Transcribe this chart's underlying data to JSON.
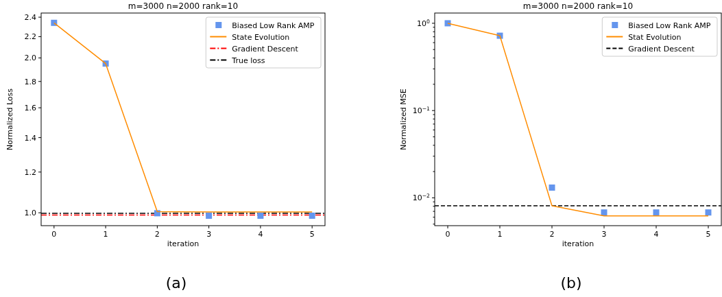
{
  "chart_data": [
    {
      "type": "scatter",
      "title": "m=3000 n=2000 rank=10",
      "xlabel": "iteration",
      "ylabel": "Normalized Loss",
      "x": [
        0,
        1,
        2,
        3,
        4,
        5
      ],
      "log": "y",
      "xlim": [
        -0.25,
        5.25
      ],
      "xticks": [
        0,
        1,
        2,
        3,
        4,
        5
      ],
      "ylim": [
        0.944,
        2.445
      ],
      "yticks": [
        {
          "value": 1,
          "label": "1.0"
        },
        1.2,
        1.4,
        1.6,
        1.8,
        {
          "value": 2,
          "label": "2.0"
        },
        2.2,
        2.4
      ],
      "legend": "top right",
      "grid": false,
      "series": [
        {
          "name": "Biased Low Rank AMP",
          "marker": "square",
          "color": "#6495ed",
          "values": [
            2.34,
            1.95,
            0.998,
            0.987,
            0.987,
            0.987
          ]
        },
        {
          "name": "State Evolution",
          "type": "line",
          "line_style": "solid",
          "color": "#ff8c00",
          "values": [
            2.34,
            1.95,
            1.005,
            1.004,
            1.004,
            1.004
          ]
        }
      ],
      "ref_lines": [
        {
          "axis": "y",
          "value": 0.99,
          "label": "Gradient Descent",
          "color": "#ff0000",
          "line_style": "dashdot"
        },
        {
          "axis": "y",
          "value": 0.998,
          "label": "True loss",
          "color": "#000000",
          "line_style": "dashdot"
        }
      ],
      "annotations": [
        "(a)"
      ]
    },
    {
      "type": "scatter",
      "title": "m=3000 n=2000 rank=10",
      "xlabel": "iteration",
      "ylabel": "Normalized MSE",
      "x": [
        0,
        1,
        2,
        3,
        4,
        5
      ],
      "log": "y",
      "xlim": [
        -0.25,
        5.25
      ],
      "xticks": [
        0,
        1,
        2,
        3,
        4,
        5
      ],
      "ylim": [
        0.0048,
        1.31
      ],
      "legend": "top right",
      "grid": false,
      "yticks": [
        {
          "value": 1,
          "label": "10$^{0}$"
        },
        {
          "value": 0.1,
          "label": "10$^{−1}$"
        },
        {
          "value": 0.01,
          "label": "10$^{−2}$"
        },
        {
          "value": 0.005,
          "label": null
        },
        {
          "value": 0.006,
          "label": null
        },
        {
          "value": 0.007,
          "label": null
        },
        {
          "value": 0.008,
          "label": null
        },
        {
          "value": 0.009,
          "label": null
        },
        {
          "value": 0.02,
          "label": null
        },
        {
          "value": 0.03,
          "label": null
        },
        {
          "value": 0.04,
          "label": null
        },
        {
          "value": 0.05,
          "label": null
        },
        {
          "value": 0.06,
          "label": null
        },
        {
          "value": 0.07,
          "label": null
        },
        {
          "value": 0.08,
          "label": null
        },
        {
          "value": 0.09,
          "label": null
        },
        {
          "value": 0.2,
          "label": null
        },
        {
          "value": 0.3,
          "label": null
        },
        {
          "value": 0.4,
          "label": null
        },
        {
          "value": 0.5,
          "label": null
        },
        {
          "value": 0.6,
          "label": null
        },
        {
          "value": 0.7,
          "label": null
        },
        {
          "value": 0.8,
          "label": null
        },
        {
          "value": 0.9,
          "label": null
        }
      ],
      "series": [
        {
          "name": "Biased Low Rank AMP",
          "marker": "square",
          "color": "#6495ed",
          "values": [
            1.0,
            0.72,
            0.0131,
            0.0068,
            0.0068,
            0.0068
          ]
        },
        {
          "name": "Stat Evolution",
          "type": "line",
          "line_style": "solid",
          "color": "#ff8c00",
          "values": [
            1.0,
            0.72,
            0.0081,
            0.0062,
            0.0062,
            0.0062
          ]
        }
      ],
      "ref_lines": [
        {
          "axis": "y",
          "value": 0.0081,
          "label": "Gradient Descent",
          "color": "#000000",
          "line_style": "dashed"
        }
      ],
      "annotations": [
        "(b)"
      ]
    }
  ]
}
